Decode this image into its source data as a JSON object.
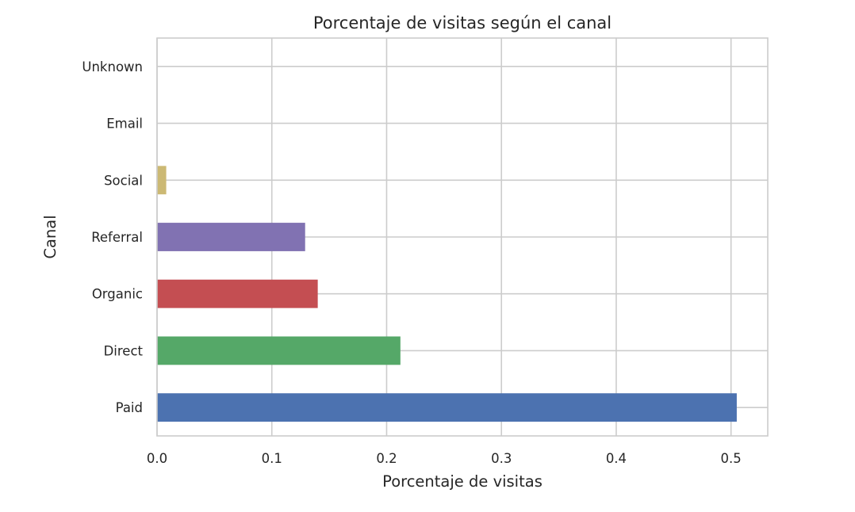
{
  "chart_data": {
    "type": "bar",
    "orientation": "horizontal",
    "title": "Porcentaje de visitas según el canal",
    "xlabel": "Porcentaje de visitas",
    "ylabel": "Canal",
    "categories": [
      "Paid",
      "Direct",
      "Organic",
      "Referral",
      "Social",
      "Email",
      "Unknown"
    ],
    "values": [
      0.505,
      0.212,
      0.14,
      0.129,
      0.008,
      0.0002,
      0.0001
    ],
    "colors": [
      "#4c72b0",
      "#55a868",
      "#c44e52",
      "#8172b2",
      "#ccb974",
      "#64b5cd",
      "#4c72b0"
    ],
    "xlim": [
      0,
      0.532
    ],
    "xticks": [
      0.0,
      0.1,
      0.2,
      0.3,
      0.4,
      0.5
    ],
    "xtick_labels": [
      "0.0",
      "0.1",
      "0.2",
      "0.3",
      "0.4",
      "0.5"
    ],
    "grid": true,
    "legend": "none",
    "style": {
      "grid_color": "#cccccc",
      "spine_color": "#cccccc",
      "background": "#ffffff"
    }
  }
}
